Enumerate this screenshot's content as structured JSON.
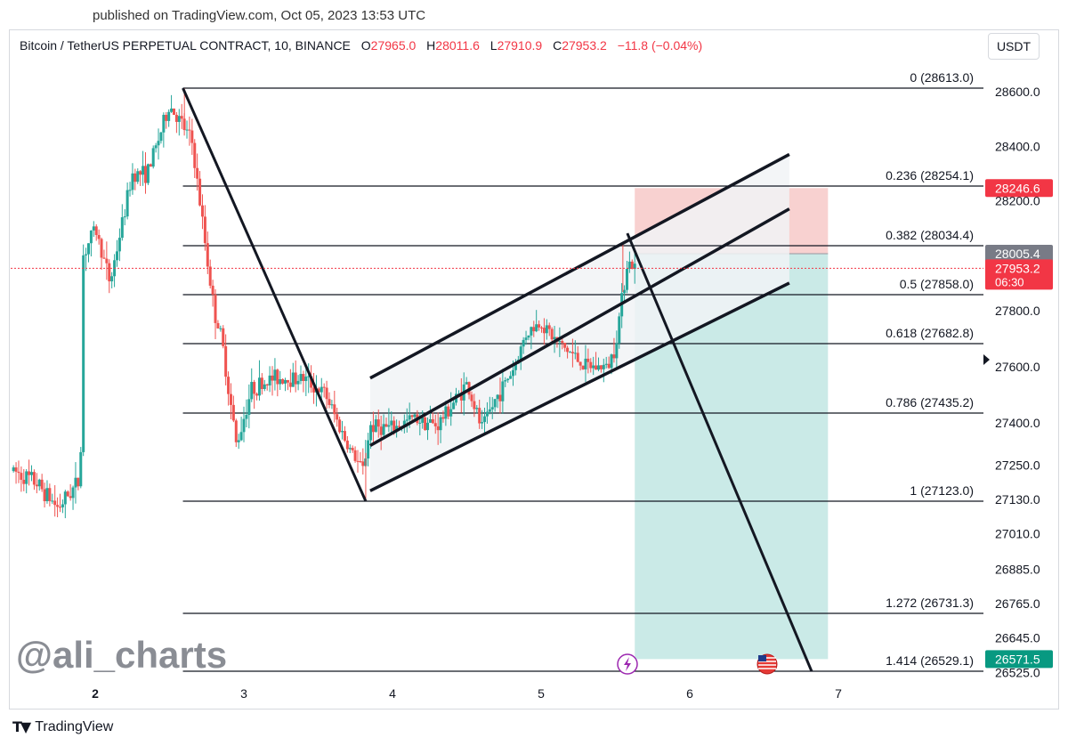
{
  "published_text": "published on TradingView.com, Oct 05, 2023 13:53 UTC",
  "legend": {
    "symbol": "Bitcoin / TetherUS PERPETUAL CONTRACT, 10, BINANCE",
    "open_label": "O",
    "open": "27965.0",
    "high_label": "H",
    "high": "28011.6",
    "low_label": "L",
    "low": "27910.9",
    "close_label": "C",
    "close": "27953.2",
    "change": "−11.8 (−0.04%)"
  },
  "currency": "USDT",
  "watermark": "@ali_charts",
  "footer_brand": "TradingView",
  "colors": {
    "up": "#26a69a",
    "down": "#ef5350",
    "stop": "#f7c9c8",
    "target": "#c4e8e4",
    "channel": "#f1f3f6"
  },
  "chart_data": {
    "type": "candlestick",
    "symbol": "BTCUSDT.P",
    "interval": "10",
    "x_tick_labels": [
      "2",
      "3",
      "4",
      "5",
      "6",
      "7"
    ],
    "y_tick_labels": [
      "28600.0",
      "28400.0",
      "28200.0",
      "27800.0",
      "27600.0",
      "27400.0",
      "27250.0",
      "27130.0",
      "27010.0",
      "26885.0",
      "26765.0",
      "26645.0",
      "26525.0"
    ],
    "price_tags": [
      {
        "text": "28246.6",
        "kind": "stop"
      },
      {
        "text": "28005.4",
        "kind": "entry"
      },
      {
        "text": "27953.2",
        "sub": "06:30",
        "kind": "last"
      },
      {
        "text": "26571.5",
        "kind": "target"
      }
    ],
    "fibonacci": [
      {
        "label": "0 (28613.0)",
        "price": 28613.0
      },
      {
        "label": "0.236 (28254.1)",
        "price": 28254.1
      },
      {
        "label": "0.382 (28034.4)",
        "price": 28034.4
      },
      {
        "label": "0.5 (27858.0)",
        "price": 27858.0
      },
      {
        "label": "0.618 (27682.8)",
        "price": 27682.8
      },
      {
        "label": "0.786 (27435.2)",
        "price": 27435.2
      },
      {
        "label": "1 (27123.0)",
        "price": 27123.0
      },
      {
        "label": "1.272 (26731.3)",
        "price": 26731.3
      },
      {
        "label": "1.414 (26529.1)",
        "price": 26529.1
      }
    ],
    "position": {
      "side": "short",
      "entry": 28005.4,
      "stop": 28246.6,
      "target": 26571.5
    },
    "price_path": [
      [
        1.45,
        27230
      ],
      [
        1.6,
        27190
      ],
      [
        1.75,
        27100
      ],
      [
        1.9,
        27200
      ],
      [
        1.92,
        28000
      ],
      [
        2.0,
        28100
      ],
      [
        2.1,
        27900
      ],
      [
        2.25,
        28300
      ],
      [
        2.35,
        28300
      ],
      [
        2.5,
        28550
      ],
      [
        2.65,
        28420
      ],
      [
        2.75,
        28000
      ],
      [
        2.8,
        27800
      ],
      [
        2.85,
        27700
      ],
      [
        2.95,
        27320
      ],
      [
        3.05,
        27520
      ],
      [
        3.2,
        27560
      ],
      [
        3.4,
        27560
      ],
      [
        3.55,
        27500
      ],
      [
        3.7,
        27320
      ],
      [
        3.8,
        27230
      ],
      [
        3.85,
        27390
      ],
      [
        4.0,
        27380
      ],
      [
        4.15,
        27420
      ],
      [
        4.3,
        27390
      ],
      [
        4.5,
        27540
      ],
      [
        4.6,
        27380
      ],
      [
        4.7,
        27490
      ],
      [
        4.82,
        27600
      ],
      [
        4.9,
        27720
      ],
      [
        5.0,
        27760
      ],
      [
        5.1,
        27690
      ],
      [
        5.2,
        27650
      ],
      [
        5.3,
        27600
      ],
      [
        5.45,
        27600
      ],
      [
        5.5,
        27680
      ],
      [
        5.58,
        27980
      ],
      [
        5.63,
        27953
      ]
    ],
    "wick_extremes": [
      [
        2.6,
        28613
      ],
      [
        3.82,
        27123
      ],
      [
        5.55,
        28040
      ]
    ]
  }
}
